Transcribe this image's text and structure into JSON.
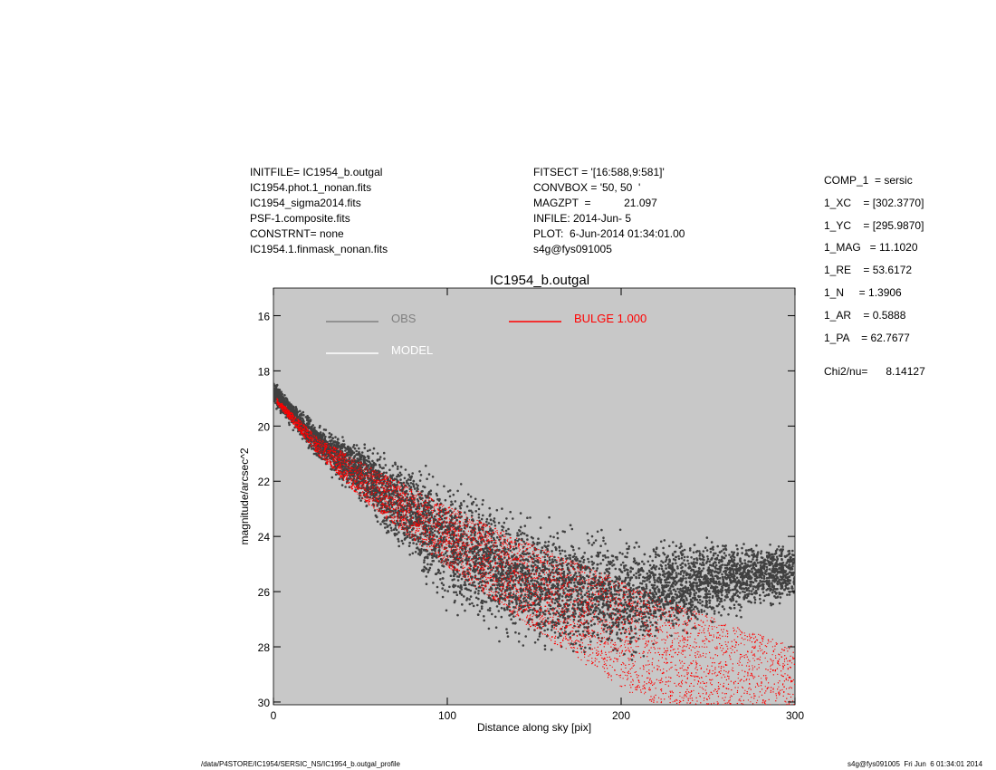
{
  "header_left": [
    "INITFILE= IC1954_b.outgal",
    "IC1954.phot.1_nonan.fits",
    "IC1954_sigma2014.fits",
    "PSF-1.composite.fits",
    "CONSTRNT= none",
    "IC1954.1.finmask_nonan.fits"
  ],
  "header_mid": [
    "FITSECT = '[16:588,9:581]'",
    "CONVBOX = '50, 50  '",
    "MAGZPT  =           21.097",
    "INFILE: 2014-Jun- 5",
    "PLOT:  6-Jun-2014 01:34:01.00",
    "s4g@fys091005"
  ],
  "params": [
    "COMP_1  = sersic",
    "1_XC    = [302.3770]",
    "1_YC    = [295.9870]",
    "1_MAG   = 11.1020",
    "1_RE    = 53.6172",
    "1_N     = 1.3906",
    "1_AR    = 0.5888",
    "1_PA    = 62.7677"
  ],
  "chi2": "Chi2/nu=      8.14127",
  "footer_left": "/data/P4STORE/IC1954/SERSIC_NS/IC1954_b.outgal_profile",
  "footer_right": "s4g@fys091005  Fri Jun  6 01:34:01 2014",
  "chart_data": {
    "type": "scatter",
    "title": "IC1954_b.outgal",
    "xlabel": "Distance along sky [pix]",
    "ylabel": "magnitude/arcsec^2",
    "xlim": [
      0,
      300
    ],
    "ylim": [
      30.1,
      15.0
    ],
    "y_inverted": true,
    "xticks": [
      0,
      100,
      200,
      300
    ],
    "yticks": [
      16,
      18,
      20,
      22,
      24,
      26,
      28,
      30
    ],
    "background": "#c8c8c8",
    "legend": [
      {
        "name": "OBS",
        "color": "#808080"
      },
      {
        "name": "MODEL",
        "color": "#ffffff"
      },
      {
        "name": "BULGE  1.000",
        "color": "#ff0000"
      }
    ],
    "series": [
      {
        "name": "OBS",
        "color": "#404040",
        "envelope_x": [
          0,
          25,
          50,
          100,
          150,
          200,
          250,
          300
        ],
        "envelope_upper": [
          18.3,
          19.8,
          20.3,
          21.6,
          23.0,
          23.6,
          23.8,
          24.0
        ],
        "envelope_lower": [
          19.3,
          21.3,
          23.0,
          27.0,
          28.5,
          29.0,
          27.5,
          26.5
        ]
      },
      {
        "name": "BULGE  1.000",
        "color": "#ff0000",
        "envelope_x": [
          2,
          25,
          50,
          100,
          150,
          200,
          250,
          300
        ],
        "envelope_upper": [
          19.0,
          20.4,
          21.3,
          22.9,
          24.3,
          25.6,
          26.9,
          28.0
        ],
        "envelope_lower": [
          19.2,
          21.0,
          22.6,
          25.1,
          27.4,
          29.5,
          31.0,
          32.0
        ]
      }
    ]
  }
}
